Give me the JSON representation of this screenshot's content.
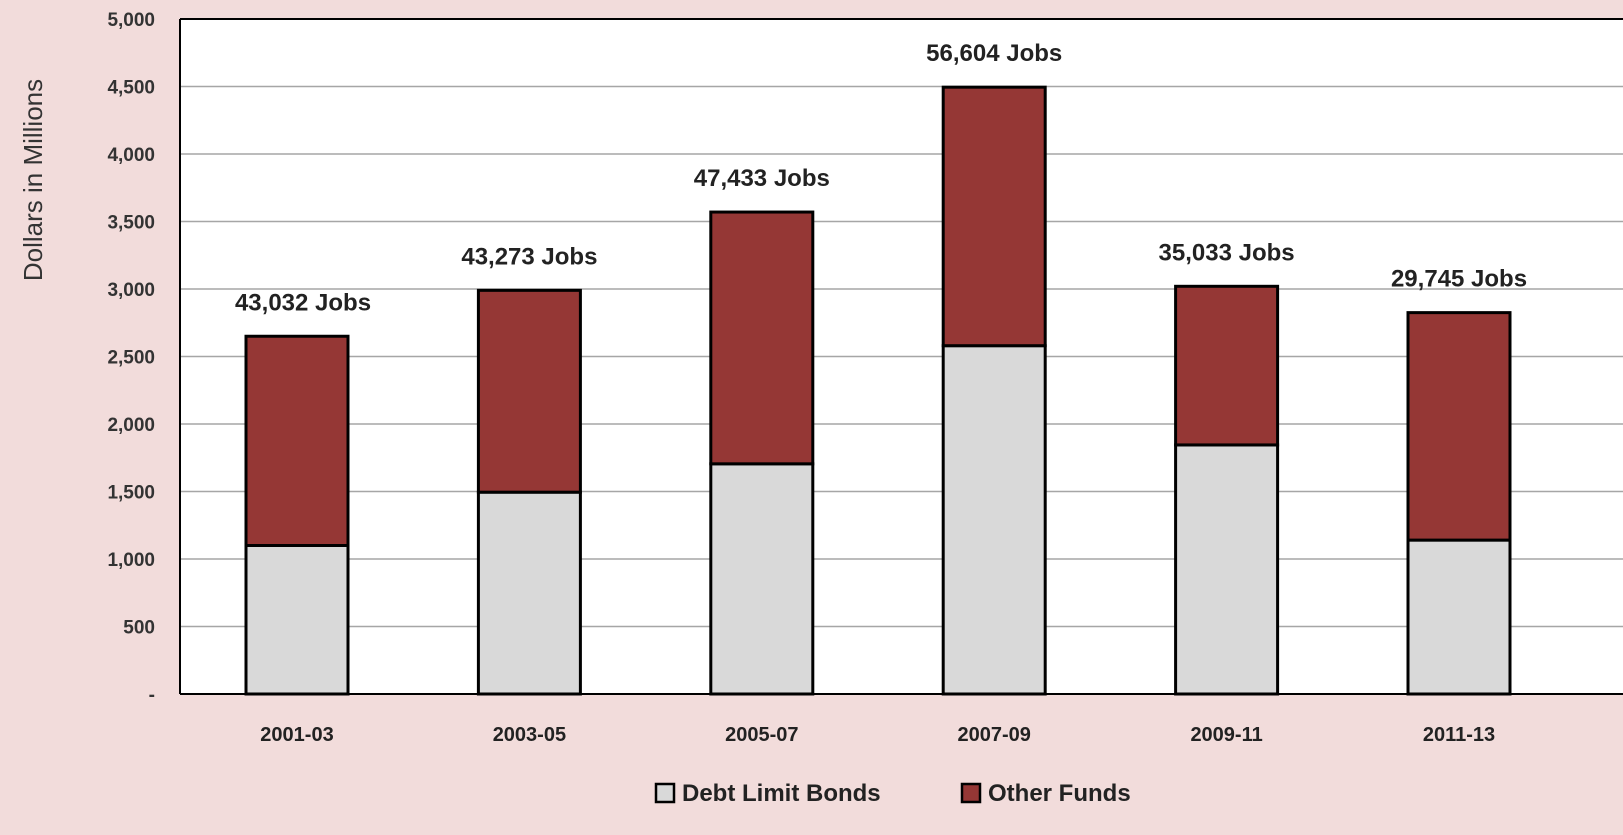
{
  "chart_data": {
    "type": "bar",
    "stacked": true,
    "categories": [
      "2001-03",
      "2003-05",
      "2005-07",
      "2007-09",
      "2009-11",
      "2011-13"
    ],
    "series": [
      {
        "name": "Debt Limit Bonds",
        "color": "#d9d9d9",
        "values": [
          1100,
          1495,
          1705,
          2580,
          1845,
          1140
        ]
      },
      {
        "name": "Other Funds",
        "color": "#953735",
        "values": [
          1550,
          1495,
          1865,
          1915,
          1175,
          1685
        ]
      }
    ],
    "bar_labels": [
      "43,032 Jobs",
      "43,273 Jobs",
      "47,433 Jobs",
      "56,604 Jobs",
      "35,033 Jobs",
      "29,745 Jobs"
    ],
    "ylabel": "Dollars in Millions",
    "xlabel": "",
    "ylim": [
      0,
      5000
    ],
    "yticks": [
      0,
      500,
      1000,
      1500,
      2000,
      2500,
      3000,
      3500,
      4000,
      4500,
      5000
    ],
    "ytick_labels": [
      "-",
      "500",
      "1,000",
      "1,500",
      "2,000",
      "2,500",
      "3,000",
      "3,500",
      "4,000",
      "4,500",
      "5,000"
    ],
    "grid": true,
    "legend": "bottom"
  }
}
